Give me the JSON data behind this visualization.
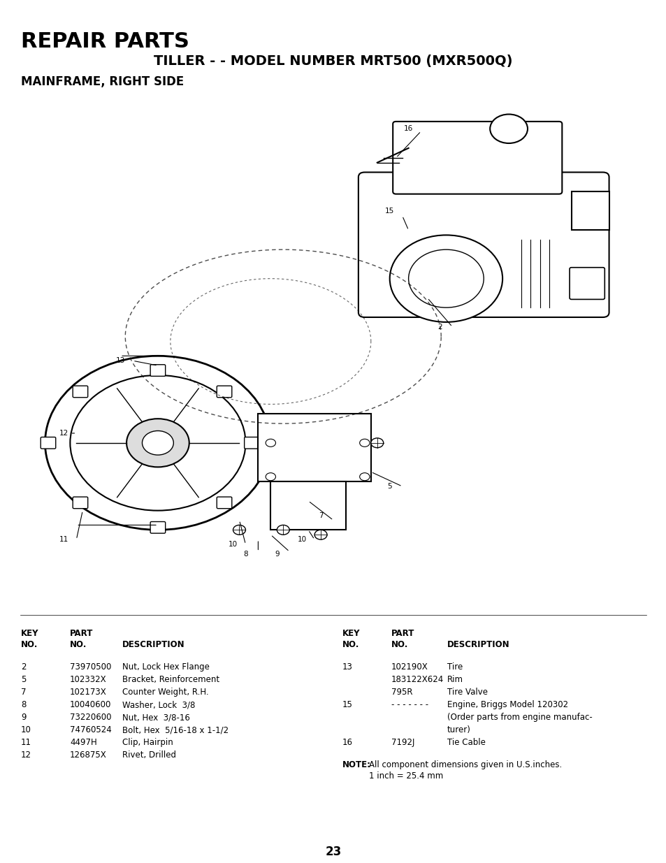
{
  "title": "REPAIR PARTS",
  "subtitle": "TILLER - - MODEL NUMBER MRT500 (MXR500Q)",
  "section": "MAINFRAME, RIGHT SIDE",
  "bg_color": "#ffffff",
  "title_fontsize": 22,
  "subtitle_fontsize": 14,
  "section_fontsize": 12,
  "left_table_headers": [
    [
      "KEY",
      "PART",
      ""
    ],
    [
      "NO.",
      "NO.",
      "DESCRIPTION"
    ]
  ],
  "left_table_rows": [
    [
      "2",
      "73970500",
      "Nut, Lock Hex Flange"
    ],
    [
      "5",
      "102332X",
      "Bracket, Reinforcement"
    ],
    [
      "7",
      "102173X",
      "Counter Weight, R.H."
    ],
    [
      "8",
      "10040600",
      "Washer, Lock  3/8"
    ],
    [
      "9",
      "73220600",
      "Nut, Hex  3/8-16"
    ],
    [
      "10",
      "74760524",
      "Bolt, Hex  5/16-18 x 1-1/2"
    ],
    [
      "11",
      "4497H",
      "Clip, Hairpin"
    ],
    [
      "12",
      "126875X",
      "Rivet, Drilled"
    ]
  ],
  "right_table_headers": [
    [
      "KEY",
      "PART",
      ""
    ],
    [
      "NO.",
      "NO.",
      "DESCRIPTION"
    ]
  ],
  "right_table_rows": [
    [
      "13",
      "102190X",
      "Tire"
    ],
    [
      "",
      "183122X624",
      "Rim"
    ],
    [
      "",
      "795R",
      "Tire Valve"
    ],
    [
      "15",
      "- - - - - - -",
      "Engine, Briggs Model 120302"
    ],
    [
      "",
      "",
      "(Order parts from engine manufac-"
    ],
    [
      "",
      "",
      "turer)"
    ],
    [
      "16",
      "7192J",
      "Tie Cable"
    ]
  ],
  "note_bold": "NOTE:",
  "note_text": "  All component dimensions given in U.S.inches.\n        1 inch = 25.4 mm",
  "page_number": "23",
  "diagram_description": "Mainframe Right Side exploded parts diagram"
}
